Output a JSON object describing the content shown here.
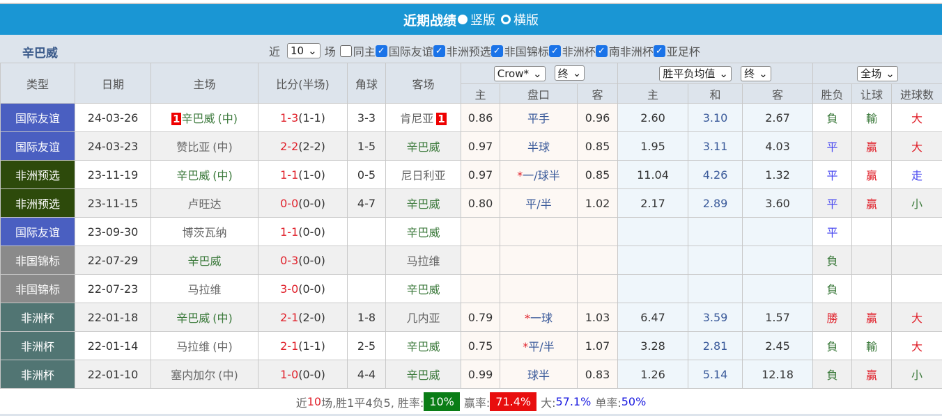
{
  "title": {
    "text": "近期战绩",
    "opt_vertical": "竖版",
    "opt_horizontal": "横版",
    "selected": "竖版"
  },
  "filter": {
    "team": "辛巴威",
    "near_label": "近",
    "count": "10",
    "games_label": "场",
    "checks": [
      {
        "label": "同主",
        "checked": false
      },
      {
        "label": "国际友谊",
        "checked": true
      },
      {
        "label": "非洲预选",
        "checked": true
      },
      {
        "label": "非国锦标",
        "checked": true
      },
      {
        "label": "非洲杯",
        "checked": true
      },
      {
        "label": "南非洲杯",
        "checked": true
      },
      {
        "label": "亚足杯",
        "checked": true
      }
    ]
  },
  "header": {
    "type": "类型",
    "date": "日期",
    "home": "主场",
    "score": "比分(半场)",
    "corner": "角球",
    "away": "客场",
    "company_select": "Crow*",
    "handicap_time_select": "终",
    "odds_select": "胜平负均值",
    "odds_time_select": "终",
    "period_select": "全场",
    "sub": [
      "主",
      "盘口",
      "客",
      "主",
      "和",
      "客",
      "胜负",
      "让球",
      "进球数"
    ]
  },
  "type_colors": {
    "国际友谊": "#4a5fc1",
    "非洲预选": "#2d4a0b",
    "非国锦标": "#8a8a8a",
    "非洲杯": "#517573"
  },
  "rows": [
    {
      "type": "国际友谊",
      "date": "24-03-26",
      "home": "辛巴威",
      "home_neutral": "(中)",
      "home_team": true,
      "home_badge": "1",
      "score": "1-3",
      "half": "(1-1)",
      "corner": "3-3",
      "away": "肯尼亚",
      "away_team": false,
      "away_badge": "1",
      "h_home": "0.86",
      "handicap": "平手",
      "h_star": false,
      "h_away": "0.96",
      "o_home": "2.60",
      "o_draw": "3.10",
      "o_away": "2.67",
      "result": "負",
      "hcap_result": "輸",
      "goals": "大"
    },
    {
      "type": "国际友谊",
      "date": "24-03-23",
      "home": "赞比亚",
      "home_neutral": "(中)",
      "home_team": false,
      "score": "2-2",
      "half": "(2-2)",
      "corner": "1-5",
      "away": "辛巴威",
      "away_team": true,
      "h_home": "0.97",
      "handicap": "半球",
      "h_star": false,
      "h_away": "0.85",
      "o_home": "1.95",
      "o_draw": "3.11",
      "o_away": "4.03",
      "result": "平",
      "hcap_result": "贏",
      "goals": "大"
    },
    {
      "type": "非洲预选",
      "date": "23-11-19",
      "home": "辛巴威",
      "home_neutral": "(中)",
      "home_team": true,
      "score": "1-1",
      "half": "(1-0)",
      "corner": "0-5",
      "away": "尼日利亚",
      "away_team": false,
      "h_home": "0.97",
      "handicap": "一/球半",
      "h_star": true,
      "h_away": "0.85",
      "o_home": "11.04",
      "o_draw": "4.26",
      "o_away": "1.32",
      "result": "平",
      "hcap_result": "贏",
      "goals": "走"
    },
    {
      "type": "非洲预选",
      "date": "23-11-15",
      "home": "卢旺达",
      "home_neutral": "",
      "home_team": false,
      "score": "0-0",
      "half": "(0-0)",
      "corner": "4-7",
      "away": "辛巴威",
      "away_team": true,
      "h_home": "0.80",
      "handicap": "平/半",
      "h_star": false,
      "h_away": "1.02",
      "o_home": "2.17",
      "o_draw": "2.89",
      "o_away": "3.60",
      "result": "平",
      "hcap_result": "贏",
      "goals": "小"
    },
    {
      "type": "国际友谊",
      "date": "23-09-30",
      "home": "博茨瓦纳",
      "home_neutral": "",
      "home_team": false,
      "score": "1-1",
      "half": "(0-0)",
      "corner": "",
      "away": "辛巴威",
      "away_team": true,
      "h_home": "",
      "handicap": "",
      "h_star": false,
      "h_away": "",
      "o_home": "",
      "o_draw": "",
      "o_away": "",
      "result": "平",
      "hcap_result": "",
      "goals": ""
    },
    {
      "type": "非国锦标",
      "date": "22-07-29",
      "home": "辛巴威",
      "home_neutral": "",
      "home_team": true,
      "score": "0-3",
      "half": "(0-0)",
      "corner": "",
      "away": "马拉维",
      "away_team": false,
      "h_home": "",
      "handicap": "",
      "h_star": false,
      "h_away": "",
      "o_home": "",
      "o_draw": "",
      "o_away": "",
      "result": "負",
      "hcap_result": "",
      "goals": ""
    },
    {
      "type": "非国锦标",
      "date": "22-07-23",
      "home": "马拉维",
      "home_neutral": "",
      "home_team": false,
      "score": "3-0",
      "half": "(0-0)",
      "corner": "",
      "away": "辛巴威",
      "away_team": true,
      "h_home": "",
      "handicap": "",
      "h_star": false,
      "h_away": "",
      "o_home": "",
      "o_draw": "",
      "o_away": "",
      "result": "負",
      "hcap_result": "",
      "goals": ""
    },
    {
      "type": "非洲杯",
      "date": "22-01-18",
      "home": "辛巴威",
      "home_neutral": "(中)",
      "home_team": true,
      "score": "2-1",
      "half": "(2-0)",
      "corner": "1-8",
      "away": "几内亚",
      "away_team": false,
      "h_home": "0.79",
      "handicap": "一球",
      "h_star": true,
      "h_away": "1.03",
      "o_home": "6.47",
      "o_draw": "3.59",
      "o_away": "1.57",
      "result": "勝",
      "hcap_result": "贏",
      "goals": "大"
    },
    {
      "type": "非洲杯",
      "date": "22-01-14",
      "home": "马拉维",
      "home_neutral": "(中)",
      "home_team": false,
      "score": "2-1",
      "half": "(1-1)",
      "corner": "2-5",
      "away": "辛巴威",
      "away_team": true,
      "h_home": "0.75",
      "handicap": "平/半",
      "h_star": true,
      "h_away": "1.07",
      "o_home": "3.28",
      "o_draw": "2.81",
      "o_away": "2.45",
      "result": "負",
      "hcap_result": "輸",
      "goals": "大"
    },
    {
      "type": "非洲杯",
      "date": "22-01-10",
      "home": "塞内加尔",
      "home_neutral": "(中)",
      "home_team": false,
      "score": "1-0",
      "half": "(0-0)",
      "corner": "4-4",
      "away": "辛巴威",
      "away_team": true,
      "h_home": "0.99",
      "handicap": "球半",
      "h_star": false,
      "h_away": "0.83",
      "o_home": "1.26",
      "o_draw": "5.14",
      "o_away": "12.18",
      "result": "負",
      "hcap_result": "贏",
      "goals": "小"
    }
  ],
  "summary": {
    "p1": "近",
    "games": "10",
    "p2": "场,胜1平4负5, 胜率:",
    "win_rate": "10%",
    "hcap_label": "赢率:",
    "hcap_rate": "71.4%",
    "big_label": "大:",
    "big_rate": "57.1%",
    "odd_label": "单率:",
    "odd_rate": "50%"
  }
}
